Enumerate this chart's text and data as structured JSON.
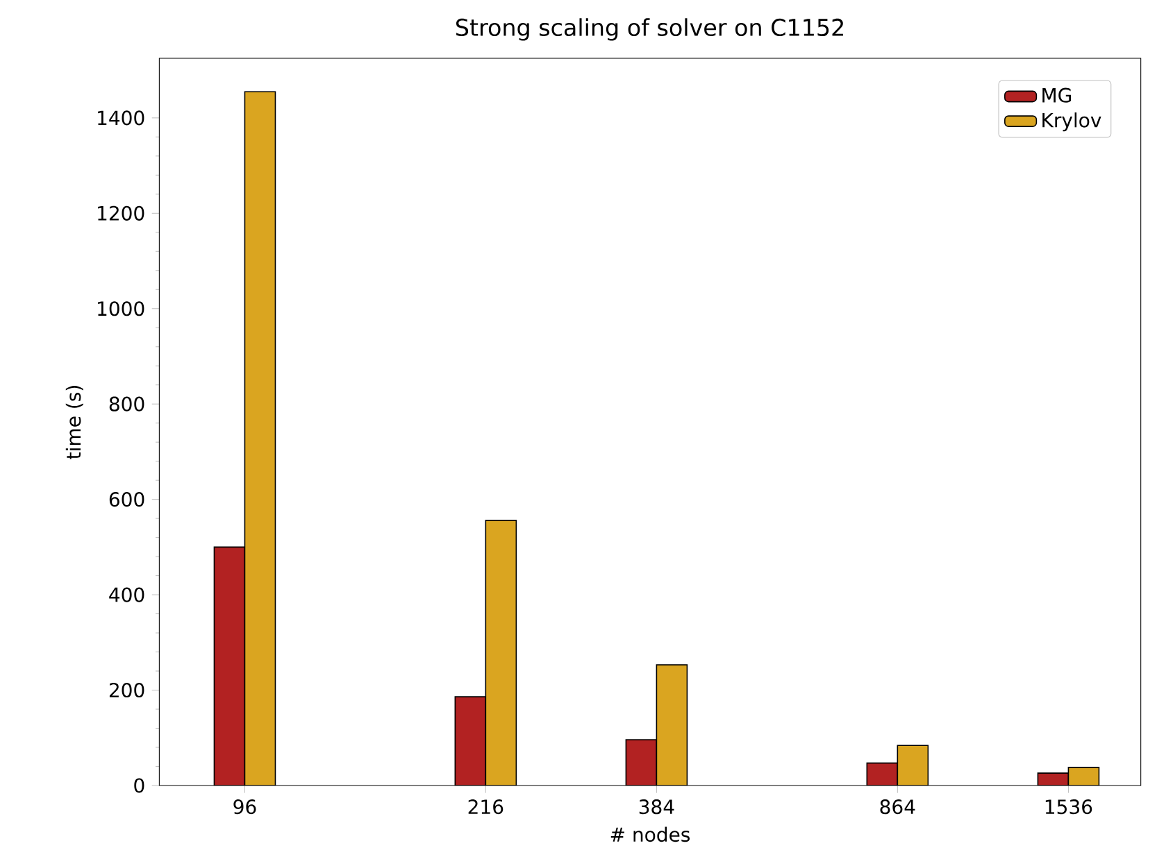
{
  "chart_data": {
    "type": "bar",
    "title": "Strong scaling of solver on C1152",
    "xlabel": "# nodes",
    "ylabel": "time (s)",
    "x": [
      96,
      216,
      384,
      864,
      1536
    ],
    "log": "x",
    "xlim": [
      72,
      1960
    ],
    "xticks": [
      96,
      216,
      384,
      864,
      1536
    ],
    "ylim": [
      0,
      1525
    ],
    "yticks": [
      0,
      200,
      400,
      600,
      800,
      1000,
      1200,
      1400
    ],
    "legend": "top right",
    "series": [
      {
        "name": "MG",
        "color": "#b22222",
        "values": [
          500,
          186,
          96,
          47,
          26
        ]
      },
      {
        "name": "Krylov",
        "color": "#daa520",
        "values": [
          1455,
          556,
          253,
          84,
          38
        ]
      }
    ]
  }
}
